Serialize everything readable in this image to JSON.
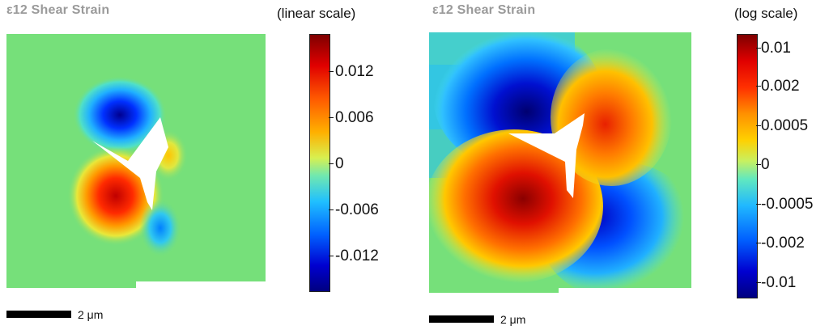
{
  "panels": [
    {
      "title": "ε12 Shear Strain",
      "scale_label": "(linear scale)",
      "ticks": [
        "0.012",
        "0.006",
        "0",
        "-0.006",
        "-0.012"
      ],
      "scale_bar_label": "2 μm"
    },
    {
      "title": "ε12 Shear Strain",
      "scale_label": "(log scale)",
      "ticks": [
        "0.01",
        "0.002",
        "0.0005",
        "0",
        "-0.0005",
        "-0.002",
        "-0.01"
      ],
      "scale_bar_label": "2 μm"
    }
  ],
  "colors": {
    "background": "#76e07a",
    "max": "#7f0000",
    "min": "#000080"
  }
}
